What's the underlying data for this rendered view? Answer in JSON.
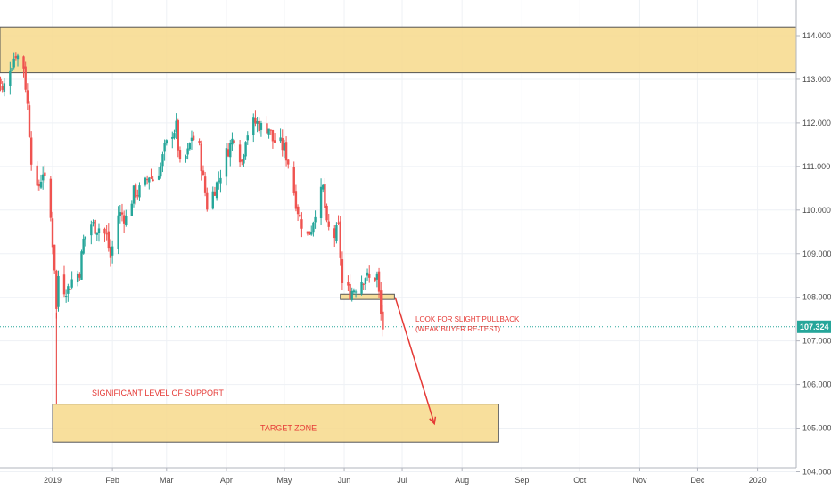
{
  "chart_data": {
    "type": "candlestick",
    "title": "",
    "xlabel": "",
    "ylabel": "",
    "ylim": [
      103.7,
      114.6
    ],
    "y_ticks": [
      "114.000",
      "113.000",
      "112.000",
      "111.000",
      "110.000",
      "109.000",
      "108.000",
      "107.000",
      "106.000",
      "105.000",
      "104.000"
    ],
    "y_tick_values": [
      114,
      113,
      112,
      111,
      110,
      109,
      108,
      107,
      106,
      105,
      104
    ],
    "x_ticks": [
      "2019",
      "Feb",
      "Mar",
      "Apr",
      "May",
      "Jun",
      "Jul",
      "Aug",
      "Sep",
      "Oct",
      "Nov",
      "Dec",
      "2020"
    ],
    "x_tick_dates": [
      "2019-01-01",
      "2019-02-01",
      "2019-03-01",
      "2019-04-01",
      "2019-05-01",
      "2019-06-01",
      "2019-07-01",
      "2019-08-01",
      "2019-09-01",
      "2019-10-01",
      "2019-11-01",
      "2019-12-01",
      "2020-01-01"
    ],
    "current_price": {
      "label": "107.324",
      "value": 107.324
    },
    "colors": {
      "up": "#26a69a",
      "down": "#ef5350",
      "zone": "#f7d98b",
      "annotation": "#e53935",
      "price_tag": "#26a69a"
    },
    "closes": [
      {
        "date": "2018-12-03",
        "close": 113.2
      },
      {
        "date": "2018-12-06",
        "close": 112.7
      },
      {
        "date": "2018-12-10",
        "close": 113.3
      },
      {
        "date": "2018-12-13",
        "close": 113.6
      },
      {
        "date": "2018-12-17",
        "close": 113.3
      },
      {
        "date": "2018-12-19",
        "close": 112.4
      },
      {
        "date": "2018-12-21",
        "close": 111.2
      },
      {
        "date": "2018-12-24",
        "close": 110.4
      },
      {
        "date": "2018-12-27",
        "close": 110.9
      },
      {
        "date": "2018-12-31",
        "close": 109.8
      },
      {
        "date": "2019-01-02",
        "close": 108.7
      },
      {
        "date": "2019-01-03",
        "close": 107.7
      },
      {
        "date": "2019-01-04",
        "close": 108.5
      },
      {
        "date": "2019-01-07",
        "close": 108.2
      },
      {
        "date": "2019-01-09",
        "close": 108.2
      },
      {
        "date": "2019-01-11",
        "close": 108.4
      },
      {
        "date": "2019-01-15",
        "close": 108.6
      },
      {
        "date": "2019-01-17",
        "close": 109.3
      },
      {
        "date": "2019-01-21",
        "close": 109.7
      },
      {
        "date": "2019-01-23",
        "close": 109.6
      },
      {
        "date": "2019-01-25",
        "close": 109.6
      },
      {
        "date": "2019-01-29",
        "close": 109.4
      },
      {
        "date": "2019-01-31",
        "close": 108.9
      },
      {
        "date": "2019-02-04",
        "close": 109.9
      },
      {
        "date": "2019-02-06",
        "close": 109.9
      },
      {
        "date": "2019-02-08",
        "close": 109.8
      },
      {
        "date": "2019-02-12",
        "close": 110.4
      },
      {
        "date": "2019-02-14",
        "close": 110.4
      },
      {
        "date": "2019-02-18",
        "close": 110.6
      },
      {
        "date": "2019-02-20",
        "close": 110.8
      },
      {
        "date": "2019-02-22",
        "close": 110.7
      },
      {
        "date": "2019-02-26",
        "close": 111.0
      },
      {
        "date": "2019-02-28",
        "close": 111.4
      },
      {
        "date": "2019-03-04",
        "close": 111.8
      },
      {
        "date": "2019-03-06",
        "close": 111.9
      },
      {
        "date": "2019-03-08",
        "close": 111.0
      },
      {
        "date": "2019-03-12",
        "close": 111.3
      },
      {
        "date": "2019-03-14",
        "close": 111.7
      },
      {
        "date": "2019-03-18",
        "close": 111.4
      },
      {
        "date": "2019-03-20",
        "close": 110.7
      },
      {
        "date": "2019-03-22",
        "close": 110.1
      },
      {
        "date": "2019-03-26",
        "close": 110.5
      },
      {
        "date": "2019-03-28",
        "close": 110.7
      },
      {
        "date": "2019-04-01",
        "close": 111.3
      },
      {
        "date": "2019-04-03",
        "close": 111.5
      },
      {
        "date": "2019-04-05",
        "close": 111.7
      },
      {
        "date": "2019-04-09",
        "close": 111.1
      },
      {
        "date": "2019-04-11",
        "close": 111.7
      },
      {
        "date": "2019-04-15",
        "close": 112.0
      },
      {
        "date": "2019-04-17",
        "close": 112.0
      },
      {
        "date": "2019-04-19",
        "close": 111.9
      },
      {
        "date": "2019-04-23",
        "close": 111.9
      },
      {
        "date": "2019-04-25",
        "close": 111.6
      },
      {
        "date": "2019-04-29",
        "close": 111.5
      },
      {
        "date": "2019-05-01",
        "close": 111.4
      },
      {
        "date": "2019-05-03",
        "close": 111.1
      },
      {
        "date": "2019-05-07",
        "close": 110.2
      },
      {
        "date": "2019-05-09",
        "close": 109.8
      },
      {
        "date": "2019-05-13",
        "close": 109.4
      },
      {
        "date": "2019-05-15",
        "close": 109.6
      },
      {
        "date": "2019-05-17",
        "close": 110.0
      },
      {
        "date": "2019-05-21",
        "close": 110.5
      },
      {
        "date": "2019-05-23",
        "close": 109.6
      },
      {
        "date": "2019-05-27",
        "close": 109.4
      },
      {
        "date": "2019-05-29",
        "close": 109.6
      },
      {
        "date": "2019-05-31",
        "close": 108.3
      },
      {
        "date": "2019-06-04",
        "close": 108.1
      },
      {
        "date": "2019-06-06",
        "close": 108.2
      },
      {
        "date": "2019-06-10",
        "close": 108.4
      },
      {
        "date": "2019-06-12",
        "close": 108.5
      },
      {
        "date": "2019-06-14",
        "close": 108.4
      },
      {
        "date": "2019-06-18",
        "close": 108.5
      },
      {
        "date": "2019-06-20",
        "close": 107.6
      },
      {
        "date": "2019-06-21",
        "close": 107.3
      }
    ],
    "zones": [
      {
        "name": "upper-resistance-zone",
        "start": "2018-12-01",
        "end": "2020-01-31",
        "y_low": 113.15,
        "y_high": 114.2
      },
      {
        "name": "retest-zone",
        "start": "2019-05-30",
        "end": "2019-06-27",
        "y_low": 107.95,
        "y_high": 108.07
      },
      {
        "name": "target-zone",
        "start": "2019-01-01",
        "end": "2019-08-20",
        "y_low": 104.68,
        "y_high": 105.55
      }
    ],
    "annotations": [
      {
        "text": "SIGNIFICANT LEVEL OF SUPPORT"
      },
      {
        "text": "TARGET ZONE"
      },
      {
        "text": "LOOK FOR SLIGHT PULLBACK"
      },
      {
        "text": "(WEAK BUYER RE-TEST)"
      }
    ]
  }
}
